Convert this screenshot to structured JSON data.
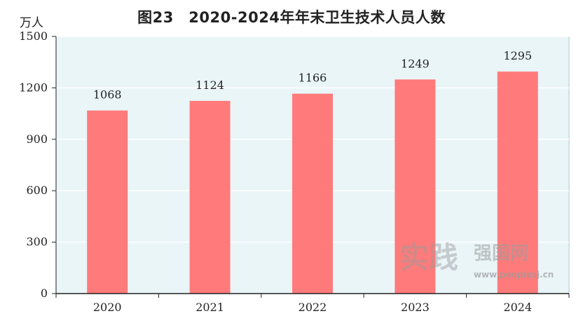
{
  "chart_data": {
    "type": "bar",
    "title": "图23　2020-2024年年末卫生技术人员人数",
    "unit_label": "万人",
    "categories": [
      "2020",
      "2021",
      "2022",
      "2023",
      "2024"
    ],
    "values": [
      1068,
      1124,
      1166,
      1249,
      1295
    ],
    "ylim": [
      0,
      1500
    ],
    "yticks": [
      0,
      300,
      600,
      900,
      1200,
      1500
    ],
    "grid": true,
    "bar_color": "#ff7b7b",
    "plot_background": "#eaf5f8",
    "grid_color": "#ffffff"
  },
  "watermark": {
    "logo_text": "实践",
    "brand": "强国网",
    "url": "www.peoplesj.cn"
  }
}
